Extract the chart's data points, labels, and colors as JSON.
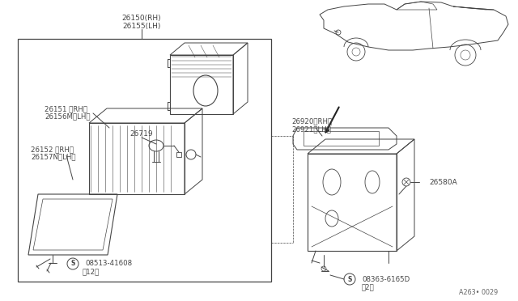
{
  "bg_color": "#ffffff",
  "line_color": "#444444",
  "text_color": "#444444",
  "fig_width": 6.4,
  "fig_height": 3.72,
  "diagram_id": "A263• 0029",
  "labels": {
    "part1_rh": "26150(RH)",
    "part1_lh": "26155(LH)",
    "part2_rh": "26151 〈RH〉",
    "part2_lh": "26156M〈LH〉",
    "part3_rh": "26152 〈RH〉",
    "part3_lh": "26157N〈LH〉",
    "part4": "26719",
    "screw1_label": "08513-41608",
    "screw1_qty": "（12）",
    "part5_rh": "26920〈RH〉",
    "part5_lh": "26921〈LH〉",
    "part6": "26580A",
    "screw2_label": "08363-6165D",
    "screw2_qty": "（2）"
  }
}
